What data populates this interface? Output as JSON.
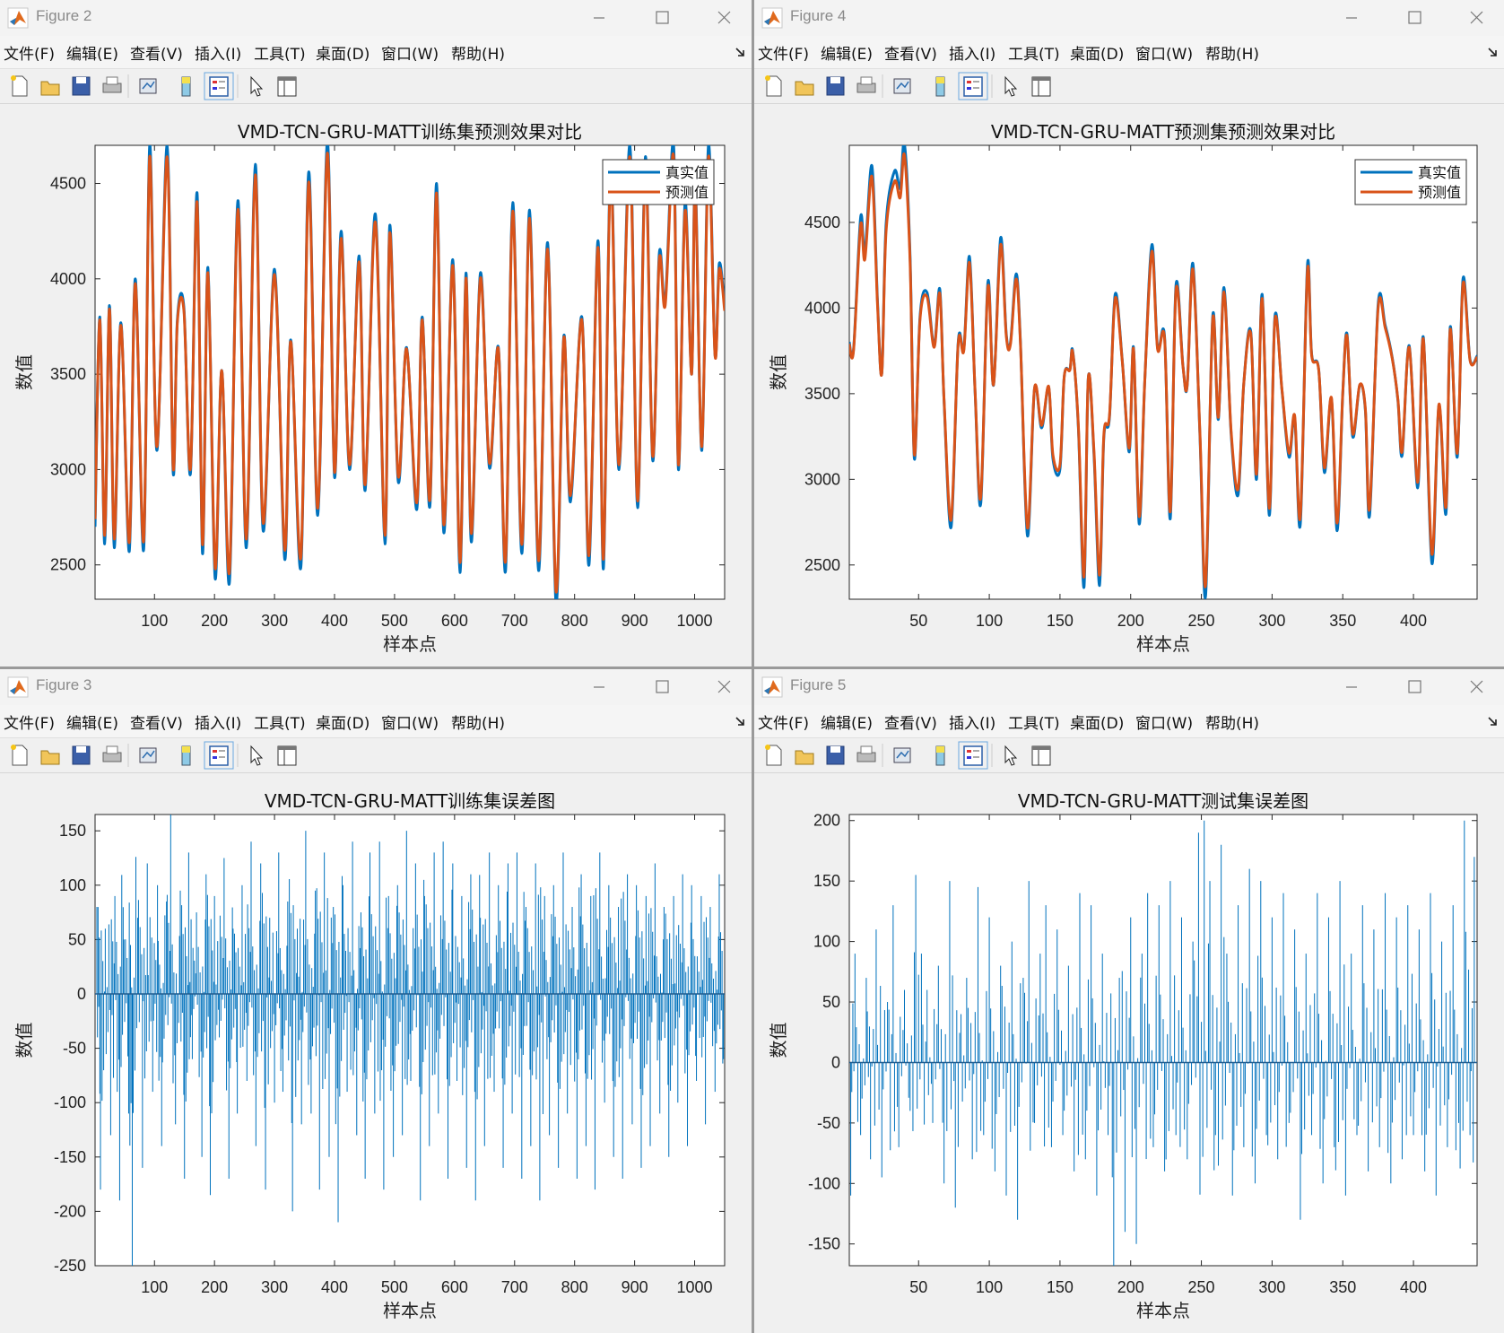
{
  "menu": [
    "文件(F)",
    "编辑(E)",
    "查看(V)",
    "插入(I)",
    "工具(T)",
    "桌面(D)",
    "窗口(W)",
    "帮助(H)"
  ],
  "colors": {
    "true": "#0072bd",
    "pred": "#d95319",
    "error": "#0072bd"
  },
  "icons": [
    "matlab-icon",
    "minimize-icon",
    "maximize-icon",
    "close-icon",
    "dock-arrow-icon",
    "new-figure-icon",
    "open-file-icon",
    "save-icon",
    "print-icon",
    "link-plot-icon",
    "colorbar-icon",
    "legend-icon",
    "pointer-icon",
    "property-inspector-icon"
  ],
  "windows": {
    "fig2": {
      "title": "Figure 2"
    },
    "fig4": {
      "title": "Figure 4"
    },
    "fig3": {
      "title": "Figure 3"
    },
    "fig5": {
      "title": "Figure 5"
    }
  },
  "chart_data": [
    {
      "id": "fig2",
      "type": "line",
      "title": "VMD-TCN-GRU-MATT训练集预测效果对比",
      "xlabel": "样本点",
      "ylabel": "数值",
      "xlim": [
        1,
        1050
      ],
      "ylim": [
        2320,
        4700
      ],
      "xticks": [
        100,
        200,
        300,
        400,
        500,
        600,
        700,
        800,
        900,
        1000
      ],
      "yticks": [
        2500,
        3000,
        3500,
        4000,
        4500
      ],
      "legend": {
        "position": "top-right",
        "entries": [
          "真实值",
          "预测值"
        ]
      },
      "series": [
        {
          "name": "真实值",
          "peaks_x": [
            1,
            9,
            17,
            25,
            33,
            44,
            58,
            68,
            82,
            92,
            104,
            121,
            131,
            138,
            149,
            160,
            171,
            180,
            189,
            201,
            212,
            225,
            239,
            253,
            268,
            281,
            300,
            317,
            327,
            344,
            357,
            372,
            388,
            400,
            411,
            425,
            441,
            451,
            468,
            484,
            492,
            506,
            520,
            537,
            546,
            559,
            570,
            582,
            597,
            609,
            619,
            628,
            643,
            658,
            673,
            685,
            697,
            712,
            725,
            740,
            755,
            769,
            782,
            793,
            812,
            824,
            839,
            848,
            860,
            874,
            892,
            905,
            918,
            930,
            941,
            951,
            965,
            973,
            984,
            995,
            1001,
            1012,
            1023,
            1034,
            1041,
            1050
          ],
          "peaks_y": [
            2700,
            3800,
            2610,
            3860,
            2590,
            3770,
            2570,
            4000,
            2580,
            4700,
            3100,
            4700,
            2990,
            3780,
            3850,
            2980,
            4450,
            2560,
            4060,
            2430,
            3520,
            2410,
            4410,
            2590,
            4600,
            2680,
            4050,
            2530,
            3680,
            2490,
            4560,
            2760,
            4720,
            2960,
            4250,
            3000,
            4120,
            2890,
            4340,
            2610,
            4280,
            2940,
            3640,
            2790,
            3800,
            2810,
            4500,
            2670,
            4100,
            2460,
            4030,
            2620,
            4030,
            3010,
            3640,
            2470,
            4400,
            2560,
            4360,
            2470,
            4190,
            2300,
            3700,
            2830,
            3800,
            2500,
            4200,
            2480,
            4600,
            3000,
            4700,
            2800,
            4640,
            3050,
            4130,
            3880,
            4700,
            3000,
            4400,
            3500,
            4530,
            3100,
            4700,
            3600,
            4080,
            3850
          ]
        },
        {
          "name": "预测值",
          "note": "closely follows 真实值 with slightly smaller extremes"
        }
      ]
    },
    {
      "id": "fig4",
      "type": "line",
      "title": "VMD-TCN-GRU-MATT预测集预测效果对比",
      "xlabel": "样本点",
      "ylabel": "数值",
      "xlim": [
        1,
        445
      ],
      "ylim": [
        2300,
        4950
      ],
      "xticks": [
        50,
        100,
        150,
        200,
        250,
        300,
        350,
        400
      ],
      "yticks": [
        2500,
        3000,
        3500,
        4000,
        4500
      ],
      "legend": {
        "position": "top-right",
        "entries": [
          "真实值",
          "预测值"
        ]
      },
      "series": [
        {
          "name": "真实值",
          "x": [
            1,
            4,
            9,
            12,
            17,
            21,
            24,
            27,
            33,
            37,
            40,
            44,
            47,
            51,
            56,
            61,
            65,
            68,
            73,
            78,
            82,
            86,
            90,
            94,
            99,
            103,
            108,
            112,
            115,
            119,
            122,
            127,
            132,
            137,
            142,
            145,
            150,
            153,
            157,
            159,
            163,
            167,
            170,
            174,
            178,
            181,
            185,
            189,
            194,
            199,
            202,
            206,
            210,
            215,
            219,
            224,
            228,
            232,
            237,
            240,
            244,
            249,
            253,
            258,
            262,
            266,
            271,
            276,
            280,
            285,
            289,
            293,
            298,
            302,
            307,
            312,
            316,
            320,
            325,
            328,
            333,
            337,
            342,
            346,
            350,
            353,
            357,
            362,
            366,
            369,
            375,
            380,
            385,
            389,
            392,
            397,
            403,
            407,
            413,
            418,
            423,
            426,
            431,
            435,
            440,
            445
          ],
          "y": [
            3800,
            3760,
            4530,
            4320,
            4830,
            4030,
            3620,
            4490,
            4800,
            4700,
            4960,
            4300,
            3120,
            3950,
            4090,
            3780,
            4110,
            3460,
            2720,
            3800,
            3760,
            4300,
            3500,
            2860,
            4150,
            3550,
            4410,
            3850,
            3800,
            4200,
            3810,
            2670,
            3530,
            3300,
            3540,
            3120,
            3060,
            3600,
            3640,
            3750,
            3300,
            2370,
            3590,
            3150,
            2380,
            3240,
            3360,
            4080,
            3700,
            3160,
            3770,
            2740,
            3580,
            4370,
            3770,
            3830,
            2770,
            4130,
            3660,
            3550,
            4260,
            3250,
            2320,
            3950,
            3350,
            4120,
            3270,
            2910,
            3560,
            3860,
            3000,
            4080,
            2790,
            3950,
            3520,
            3130,
            3360,
            2740,
            4250,
            3730,
            3640,
            3040,
            3470,
            2700,
            3500,
            3850,
            3250,
            3550,
            3400,
            2790,
            4020,
            3900,
            3710,
            3460,
            3140,
            3780,
            2950,
            3830,
            2510,
            3430,
            2800,
            3890,
            3130,
            4170,
            3700,
            3720
          ]
        },
        {
          "name": "预测值",
          "note": "closely follows 真实值 with slightly smaller extremes"
        }
      ]
    },
    {
      "id": "fig3",
      "type": "bar",
      "title": "VMD-TCN-GRU-MATT训练集误差图",
      "xlabel": "样本点",
      "ylabel": "数值",
      "xlim": [
        1,
        1050
      ],
      "ylim": [
        -250,
        165
      ],
      "xticks": [
        100,
        200,
        300,
        400,
        500,
        600,
        700,
        800,
        900,
        1000
      ],
      "yticks": [
        -250,
        -200,
        -150,
        -100,
        -50,
        0,
        50,
        100,
        150
      ],
      "series": [
        {
          "name": "误差",
          "x": [
            4,
            10,
            18,
            27,
            34,
            42,
            49,
            57,
            63,
            72,
            80,
            88,
            97,
            105,
            112,
            120,
            127,
            135,
            143,
            150,
            157,
            163,
            170,
            179,
            186,
            193,
            200,
            208,
            216,
            224,
            231,
            238,
            246,
            254,
            261,
            269,
            277,
            285,
            292,
            300,
            307,
            314,
            322,
            330,
            338,
            345,
            352,
            361,
            368,
            375,
            383,
            391,
            398,
            406,
            414,
            421,
            430,
            437,
            444,
            451,
            459,
            467,
            475,
            482,
            490,
            498,
            505,
            513,
            520,
            527,
            535,
            543,
            550,
            558,
            566,
            573,
            581,
            589,
            597,
            604,
            612,
            620,
            627,
            635,
            643,
            650,
            658,
            666,
            673,
            681,
            689,
            696,
            704,
            712,
            719,
            727,
            735,
            742,
            750,
            758,
            765,
            773,
            781,
            788,
            796,
            804,
            811,
            819,
            827,
            834,
            842,
            850,
            857,
            865,
            873,
            880,
            888,
            896,
            903,
            911,
            919,
            926,
            934,
            942,
            949,
            957,
            965,
            972,
            980,
            988,
            995,
            1003,
            1011,
            1018,
            1026,
            1034,
            1041,
            1048
          ],
          "values": [
            80,
            -180,
            60,
            -130,
            90,
            -190,
            50,
            -110,
            -250,
            70,
            -160,
            120,
            -90,
            100,
            -140,
            85,
            165,
            -120,
            95,
            -170,
            130,
            -60,
            75,
            -150,
            110,
            -185,
            90,
            -40,
            125,
            -170,
            60,
            -110,
            100,
            -80,
            140,
            -140,
            120,
            -180,
            70,
            -100,
            130,
            -90,
            85,
            -200,
            60,
            -120,
            150,
            -110,
            95,
            -180,
            130,
            -150,
            80,
            -210,
            100,
            -90,
            140,
            -130,
            75,
            -170,
            130,
            -110,
            140,
            -180,
            90,
            -150,
            100,
            -130,
            150,
            -80,
            120,
            -190,
            90,
            -140,
            130,
            -110,
            140,
            -170,
            120,
            -80,
            90,
            -160,
            110,
            -190,
            70,
            -140,
            130,
            -90,
            100,
            -160,
            120,
            -110,
            130,
            -170,
            80,
            -140,
            120,
            -190,
            90,
            -130,
            100,
            -160,
            130,
            -110,
            80,
            -170,
            110,
            -140,
            90,
            -180,
            130,
            -100,
            100,
            -150,
            80,
            -170,
            110,
            -120,
            100,
            -160,
            90,
            -140,
            120,
            -110,
            80,
            -150,
            90,
            -100,
            110,
            -140,
            100,
            -80,
            90,
            -120,
            80,
            -90,
            110,
            -60
          ]
        }
      ]
    },
    {
      "id": "fig5",
      "type": "bar",
      "title": "VMD-TCN-GRU-MATT测试集误差图",
      "xlabel": "样本点",
      "ylabel": "数值",
      "xlim": [
        1,
        445
      ],
      "ylim": [
        -168,
        205
      ],
      "xticks": [
        50,
        100,
        150,
        200,
        250,
        300,
        350,
        400
      ],
      "yticks": [
        -150,
        -100,
        -50,
        0,
        50,
        100,
        150,
        200
      ],
      "series": [
        {
          "name": "误差",
          "x": [
            2,
            5,
            9,
            13,
            16,
            20,
            24,
            28,
            32,
            36,
            40,
            44,
            48,
            52,
            56,
            60,
            64,
            68,
            72,
            76,
            80,
            84,
            88,
            92,
            96,
            100,
            104,
            108,
            112,
            116,
            120,
            124,
            128,
            132,
            136,
            140,
            144,
            148,
            152,
            156,
            160,
            164,
            168,
            172,
            176,
            180,
            184,
            188,
            192,
            196,
            200,
            204,
            208,
            212,
            216,
            220,
            224,
            228,
            232,
            236,
            240,
            244,
            248,
            252,
            256,
            260,
            264,
            268,
            272,
            276,
            280,
            284,
            288,
            292,
            296,
            300,
            304,
            308,
            312,
            316,
            320,
            324,
            328,
            332,
            336,
            340,
            344,
            348,
            352,
            356,
            360,
            364,
            368,
            372,
            376,
            380,
            384,
            388,
            392,
            396,
            400,
            404,
            408,
            412,
            416,
            420,
            424,
            428,
            432,
            436,
            440,
            443
          ],
          "values": [
            -110,
            90,
            -60,
            70,
            -80,
            110,
            -95,
            50,
            130,
            -70,
            60,
            -40,
            155,
            90,
            60,
            -50,
            80,
            -100,
            150,
            -120,
            40,
            70,
            -80,
            145,
            -60,
            120,
            -90,
            80,
            -110,
            100,
            -130,
            70,
            150,
            -50,
            90,
            130,
            -70,
            110,
            -60,
            80,
            -90,
            140,
            -80,
            130,
            -110,
            90,
            -60,
            -170,
            70,
            -140,
            120,
            -150,
            90,
            140,
            -70,
            130,
            -90,
            150,
            -60,
            120,
            -80,
            100,
            190,
            200,
            150,
            -60,
            180,
            90,
            -110,
            130,
            -70,
            160,
            -100,
            150,
            -60,
            120,
            -80,
            140,
            -50,
            110,
            -130,
            90,
            -60,
            140,
            -100,
            120,
            -70,
            150,
            -110,
            90,
            -60,
            130,
            -90,
            110,
            -70,
            140,
            -100,
            120,
            -80,
            130,
            -60,
            110,
            -90,
            140,
            -110,
            100,
            -70,
            130,
            -50,
            200,
            -60,
            170
          ]
        }
      ]
    }
  ]
}
